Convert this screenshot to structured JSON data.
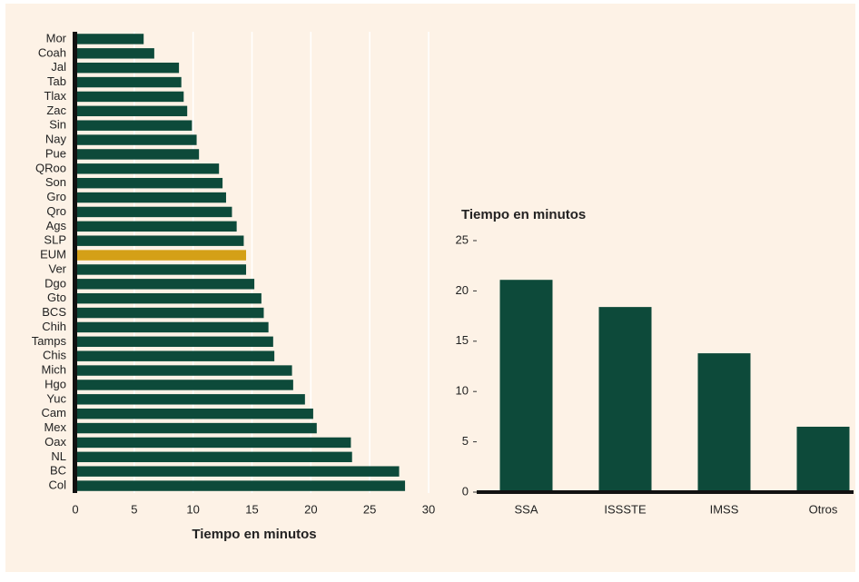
{
  "chart_data": [
    {
      "type": "barh",
      "xlabel": "Tiempo en minutos",
      "categories": [
        "Mor",
        "Coah",
        "Jal",
        "Tab",
        "Tlax",
        "Zac",
        "Sin",
        "Nay",
        "Pue",
        "QRoo",
        "Son",
        "Gro",
        "Qro",
        "Ags",
        "SLP",
        "EUM",
        "Ver",
        "Dgo",
        "Gto",
        "BCS",
        "Chih",
        "Tamps",
        "Chis",
        "Mich",
        "Hgo",
        "Yuc",
        "Cam",
        "Mex",
        "Oax",
        "NL",
        "BC",
        "Col"
      ],
      "values": [
        5.8,
        6.7,
        8.8,
        9.0,
        9.2,
        9.5,
        9.9,
        10.3,
        10.5,
        12.2,
        12.5,
        12.8,
        13.3,
        13.7,
        14.3,
        14.5,
        14.5,
        15.2,
        15.8,
        16.0,
        16.4,
        16.8,
        16.9,
        18.4,
        18.5,
        19.5,
        20.2,
        20.5,
        23.4,
        23.5,
        27.5,
        28.0
      ],
      "colors": [
        "#0d4a3a",
        "#0d4a3a",
        "#0d4a3a",
        "#0d4a3a",
        "#0d4a3a",
        "#0d4a3a",
        "#0d4a3a",
        "#0d4a3a",
        "#0d4a3a",
        "#0d4a3a",
        "#0d4a3a",
        "#0d4a3a",
        "#0d4a3a",
        "#0d4a3a",
        "#0d4a3a",
        "#d4a017",
        "#0d4a3a",
        "#0d4a3a",
        "#0d4a3a",
        "#0d4a3a",
        "#0d4a3a",
        "#0d4a3a",
        "#0d4a3a",
        "#0d4a3a",
        "#0d4a3a",
        "#0d4a3a",
        "#0d4a3a",
        "#0d4a3a",
        "#0d4a3a",
        "#0d4a3a",
        "#0d4a3a",
        "#0d4a3a"
      ],
      "xlim": [
        0,
        30
      ],
      "xticks": [
        0,
        5,
        10,
        15,
        20,
        25,
        30
      ],
      "grid": true
    },
    {
      "type": "bar",
      "title": "Tiempo en minutos",
      "categories": [
        "SSA",
        "ISSSTE",
        "IMSS",
        "Otros"
      ],
      "values": [
        21.1,
        18.4,
        13.8,
        6.5
      ],
      "color": "#0d4a3a",
      "ylim": [
        0,
        25
      ],
      "yticks": [
        0,
        5,
        10,
        15,
        20,
        25
      ]
    }
  ]
}
